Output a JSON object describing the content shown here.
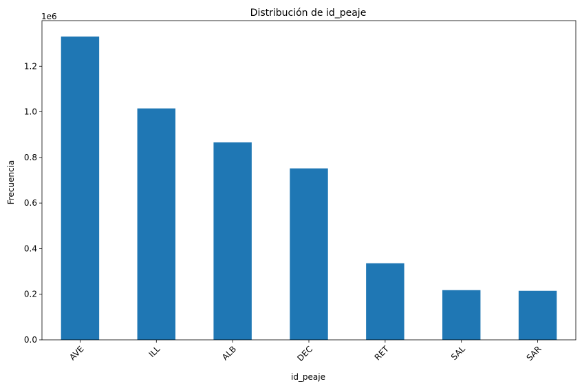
{
  "chart_data": {
    "type": "bar",
    "title": "Distribución de id_peaje",
    "xlabel": "id_peaje",
    "ylabel": "Frecuencia",
    "offset_text": "1e6",
    "categories": [
      "AVE",
      "ILL",
      "ALB",
      "DEC",
      "RET",
      "SAL",
      "SAR"
    ],
    "values": [
      1330000,
      1015000,
      866000,
      752000,
      336000,
      218000,
      215000
    ],
    "ylim": [
      0,
      1400000
    ],
    "yticks": [
      0,
      200000,
      400000,
      600000,
      800000,
      1000000,
      1200000
    ],
    "ytick_labels": [
      "0.0",
      "0.2",
      "0.4",
      "0.6",
      "0.8",
      "1.0",
      "1.2"
    ],
    "bar_color": "#1f77b4",
    "grid": false,
    "legend": "none"
  }
}
